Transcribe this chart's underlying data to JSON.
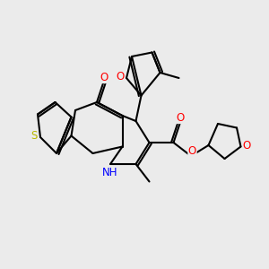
{
  "bg_color": "#ebebeb",
  "bond_color": "#000000",
  "bond_width": 1.5,
  "atom_colors": {
    "O": "#ff0000",
    "N": "#0000ff",
    "S": "#b8b800",
    "C": "#000000"
  },
  "font_size": 8.5
}
